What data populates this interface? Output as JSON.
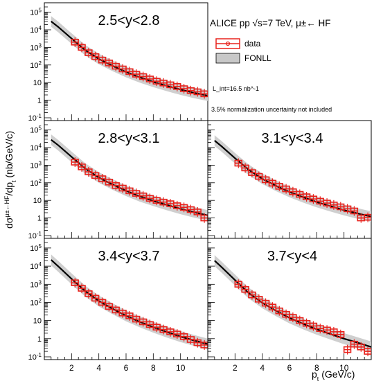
{
  "chart_data": {
    "type": "line",
    "ylabel": "dσ^{μ±←HF}/dp_t (nb/GeV/c)",
    "xlabel": "p_t (GeV/c)",
    "y_scale": "log",
    "x_ticks": [
      2,
      4,
      6,
      8,
      10
    ],
    "legend": {
      "title": "ALICE pp √s=7 TeV, μ±← HF",
      "entries": [
        "data",
        "FONLL"
      ],
      "placement": "top-right"
    },
    "annotations": [
      "L_int=16.5 nb^-1",
      "3.5% normalization uncertainty not included"
    ],
    "panels": [
      {
        "label": "2.5<y<2.8",
        "xlim": [
          0,
          12
        ],
        "ylim": [
          0.1,
          200000
        ],
        "y_ticks": [
          "10^-1",
          "1",
          "10",
          "10^2",
          "10^3",
          "10^4",
          "10^5"
        ],
        "fonll": {
          "x": [
            0.5,
            1.0,
            2.0,
            3.0,
            4.0,
            5.0,
            6.0,
            7.0,
            8.0,
            9.0,
            10.0,
            11.0,
            12.0
          ],
          "y": [
            30000,
            15000,
            3200,
            700,
            220,
            90,
            40,
            20,
            11,
            6.5,
            4,
            2.6,
            1.8
          ]
        },
        "data": {
          "x": [
            2.25,
            2.75,
            3.25,
            3.75,
            4.25,
            4.75,
            5.25,
            5.75,
            6.25,
            6.75,
            7.25,
            7.75,
            8.25,
            8.75,
            9.25,
            9.75,
            10.25,
            10.75,
            11.25,
            11.75
          ],
          "y": [
            2000,
            1000,
            500,
            300,
            190,
            130,
            85,
            60,
            42,
            30,
            22,
            16,
            12,
            9.5,
            7.5,
            6,
            4.5,
            3.5,
            3,
            2.3
          ]
        }
      },
      {
        "label": "2.8<y<3.1",
        "xlim": [
          0,
          12
        ],
        "ylim": [
          0.1,
          200000
        ],
        "y_ticks": [
          "10^-1",
          "1",
          "10",
          "10^2",
          "10^3",
          "10^4",
          "10^5"
        ],
        "fonll": {
          "x": [
            0.5,
            1.0,
            2.0,
            3.0,
            4.0,
            5.0,
            6.0,
            7.0,
            8.0,
            9.0,
            10.0,
            11.0,
            12.0
          ],
          "y": [
            28000,
            14000,
            3000,
            650,
            200,
            80,
            35,
            17,
            9.5,
            5.5,
            3.3,
            2.1,
            1.4
          ]
        },
        "data": {
          "x": [
            2.25,
            2.75,
            3.25,
            3.75,
            4.25,
            4.75,
            5.25,
            5.75,
            6.25,
            6.75,
            7.25,
            7.75,
            8.25,
            8.75,
            9.25,
            9.75,
            10.25,
            10.75,
            11.25,
            11.75
          ],
          "y": [
            1500,
            800,
            420,
            260,
            170,
            110,
            70,
            50,
            35,
            25,
            18,
            13,
            10,
            8,
            6.5,
            5,
            4,
            3,
            2.2,
            1
          ]
        }
      },
      {
        "label": "3.1<y<3.4",
        "xlim": [
          0,
          12
        ],
        "ylim": [
          0.1,
          200000
        ],
        "y_ticks": [
          "10^-1",
          "1",
          "10",
          "10^2",
          "10^3",
          "10^4",
          "10^5"
        ],
        "fonll": {
          "x": [
            0.5,
            1.0,
            2.0,
            3.0,
            4.0,
            5.0,
            6.0,
            7.0,
            8.0,
            9.0,
            10.0,
            11.0,
            12.0
          ],
          "y": [
            25000,
            12000,
            2500,
            550,
            170,
            68,
            30,
            15,
            8,
            4.7,
            2.8,
            1.8,
            1.2
          ]
        },
        "data": {
          "x": [
            2.25,
            2.75,
            3.25,
            3.75,
            4.25,
            4.75,
            5.25,
            5.75,
            6.25,
            6.75,
            7.25,
            7.75,
            8.25,
            8.75,
            9.25,
            9.75,
            10.25,
            10.75,
            11.25,
            11.75
          ],
          "y": [
            1300,
            700,
            380,
            230,
            150,
            95,
            63,
            45,
            31,
            22,
            16,
            12,
            9,
            7,
            5.5,
            4.3,
            3.3,
            2.5,
            1.0,
            1.1
          ]
        }
      },
      {
        "label": "3.4<y<3.7",
        "xlim": [
          0,
          12
        ],
        "ylim": [
          0.1,
          200000
        ],
        "y_ticks": [
          "10^-1",
          "1",
          "10",
          "10^2",
          "10^3",
          "10^4",
          "10^5"
        ],
        "fonll": {
          "x": [
            0.5,
            1.0,
            2.0,
            3.0,
            4.0,
            5.0,
            6.0,
            7.0,
            8.0,
            9.0,
            10.0,
            11.0,
            12.0
          ],
          "y": [
            22000,
            10000,
            2000,
            420,
            120,
            45,
            18,
            8.5,
            4.3,
            2.3,
            1.3,
            0.8,
            0.5
          ]
        },
        "data": {
          "x": [
            2.25,
            2.75,
            3.25,
            3.75,
            4.25,
            4.75,
            5.25,
            5.75,
            6.25,
            6.75,
            7.25,
            7.75,
            8.25,
            8.75,
            9.25,
            9.75,
            10.25,
            10.75,
            11.25,
            11.75
          ],
          "y": [
            1200,
            600,
            300,
            170,
            100,
            60,
            38,
            26,
            18,
            12,
            8.5,
            6,
            4.3,
            3.2,
            2.4,
            1.8,
            1.3,
            0.9,
            0.6,
            0.45
          ]
        }
      },
      {
        "label": "3.7<y<4",
        "xlim": [
          0,
          12
        ],
        "ylim": [
          0.1,
          200000
        ],
        "y_ticks": [
          "10^-1",
          "1",
          "10",
          "10^2",
          "10^3",
          "10^4",
          "10^5"
        ],
        "fonll": {
          "x": [
            0.5,
            1.0,
            2.0,
            3.0,
            4.0,
            5.0,
            6.0,
            7.0,
            8.0,
            9.0,
            10.0,
            11.0,
            12.0
          ],
          "y": [
            20000,
            9000,
            1700,
            330,
            95,
            35,
            14,
            6.5,
            3.3,
            1.8,
            1.0,
            0.6,
            0.35
          ]
        },
        "data": {
          "x": [
            2.25,
            2.75,
            3.25,
            3.75,
            4.25,
            4.75,
            5.25,
            5.75,
            6.25,
            6.75,
            7.25,
            7.75,
            8.25,
            8.75,
            9.25,
            9.75,
            10.25,
            10.75,
            11.25,
            11.75
          ],
          "y": [
            1000,
            520,
            260,
            150,
            90,
            55,
            34,
            22,
            15,
            10,
            7,
            5,
            3.6,
            3,
            2.4,
            1.7,
            0.25,
            0.5,
            0.35,
            0.2
          ]
        }
      }
    ]
  }
}
